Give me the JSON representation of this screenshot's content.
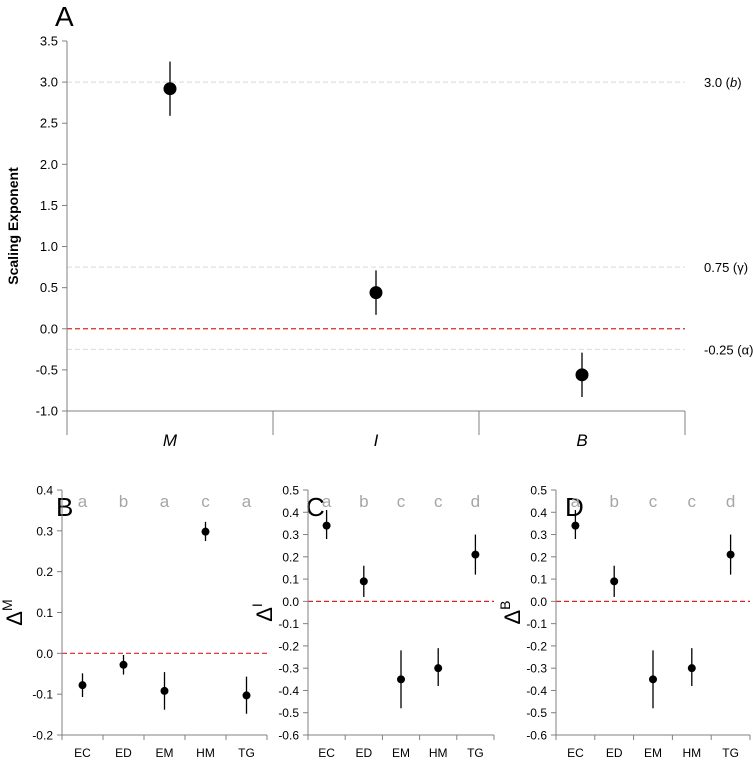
{
  "colors": {
    "marker": "#000000",
    "zero_line": "#d62728",
    "reference_line": "#d9d9d9",
    "axis": "#808080",
    "group_letter": "#a6a6a6"
  },
  "chart_data": [
    {
      "panel": "A",
      "type": "scatter",
      "ylabel": "Scaling Exponent",
      "ylim": [
        -1.0,
        3.5
      ],
      "yticks": [
        "-1.0",
        "-0.5",
        "0.0",
        "0.5",
        "1.0",
        "1.5",
        "2.0",
        "2.5",
        "3.0",
        "3.5"
      ],
      "categories": [
        "M",
        "I",
        "B"
      ],
      "points": [
        {
          "category": "M",
          "y": 2.92,
          "low": 2.59,
          "high": 3.25
        },
        {
          "category": "I",
          "y": 0.44,
          "low": 0.17,
          "high": 0.71
        },
        {
          "category": "B",
          "y": -0.56,
          "low": -0.83,
          "high": -0.29
        }
      ],
      "zero_line": 0.0,
      "reference_lines": [
        {
          "y": 3.0,
          "label_text": "3.0 (",
          "label_italic": "b",
          "label_close": ")"
        },
        {
          "y": 0.75,
          "label_text": "0.75 (γ)",
          "label_italic": "",
          "label_close": ""
        },
        {
          "y": -0.25,
          "label_text": "-0.25 (α)",
          "label_italic": "",
          "label_close": ""
        }
      ]
    },
    {
      "panel": "B",
      "type": "scatter",
      "ylabel_base": "Δ",
      "ylabel_sup": "M",
      "ylim": [
        -0.2,
        0.4
      ],
      "yticks": [
        "-0.2",
        "-0.1",
        "0.0",
        "0.1",
        "0.2",
        "0.3",
        "0.4"
      ],
      "categories": [
        "EC",
        "ED",
        "EM",
        "HM",
        "TG"
      ],
      "groups": [
        "a",
        "b",
        "a",
        "c",
        "a"
      ],
      "points": [
        {
          "category": "EC",
          "y": -0.078,
          "low": -0.107,
          "high": -0.049
        },
        {
          "category": "ED",
          "y": -0.028,
          "low": -0.052,
          "high": -0.004
        },
        {
          "category": "EM",
          "y": -0.092,
          "low": -0.138,
          "high": -0.046
        },
        {
          "category": "HM",
          "y": 0.298,
          "low": 0.275,
          "high": 0.322
        },
        {
          "category": "TG",
          "y": -0.103,
          "low": -0.148,
          "high": -0.057
        }
      ],
      "zero_line": 0.0
    },
    {
      "panel": "C",
      "type": "scatter",
      "ylabel_base": "Δ",
      "ylabel_sup": "I",
      "ylim": [
        -0.6,
        0.5
      ],
      "yticks": [
        "-0.6",
        "-0.5",
        "-0.4",
        "-0.3",
        "-0.2",
        "-0.1",
        "0.0",
        "0.1",
        "0.2",
        "0.3",
        "0.4",
        "0.5"
      ],
      "categories": [
        "EC",
        "ED",
        "EM",
        "HM",
        "TG"
      ],
      "groups": [
        "a",
        "b",
        "c",
        "c",
        "d"
      ],
      "points": [
        {
          "category": "EC",
          "y": 0.34,
          "low": 0.28,
          "high": 0.41
        },
        {
          "category": "ED",
          "y": 0.09,
          "low": 0.02,
          "high": 0.16
        },
        {
          "category": "EM",
          "y": -0.35,
          "low": -0.48,
          "high": -0.22
        },
        {
          "category": "HM",
          "y": -0.3,
          "low": -0.38,
          "high": -0.21
        },
        {
          "category": "TG",
          "y": 0.21,
          "low": 0.12,
          "high": 0.3
        }
      ],
      "zero_line": 0.0
    },
    {
      "panel": "D",
      "type": "scatter",
      "ylabel_base": "Δ",
      "ylabel_sup": "B",
      "ylim": [
        -0.6,
        0.5
      ],
      "yticks": [
        "-0.6",
        "-0.5",
        "-0.4",
        "-0.3",
        "-0.2",
        "-0.1",
        "0.0",
        "0.1",
        "0.2",
        "0.3",
        "0.4",
        "0.5"
      ],
      "categories": [
        "EC",
        "ED",
        "EM",
        "HM",
        "TG"
      ],
      "groups": [
        "a",
        "b",
        "c",
        "c",
        "d"
      ],
      "points": [
        {
          "category": "EC",
          "y": 0.34,
          "low": 0.28,
          "high": 0.41
        },
        {
          "category": "ED",
          "y": 0.09,
          "low": 0.02,
          "high": 0.16
        },
        {
          "category": "EM",
          "y": -0.35,
          "low": -0.48,
          "high": -0.22
        },
        {
          "category": "HM",
          "y": -0.3,
          "low": -0.38,
          "high": -0.21
        },
        {
          "category": "TG",
          "y": 0.21,
          "low": 0.12,
          "high": 0.3
        }
      ],
      "zero_line": 0.0
    }
  ]
}
